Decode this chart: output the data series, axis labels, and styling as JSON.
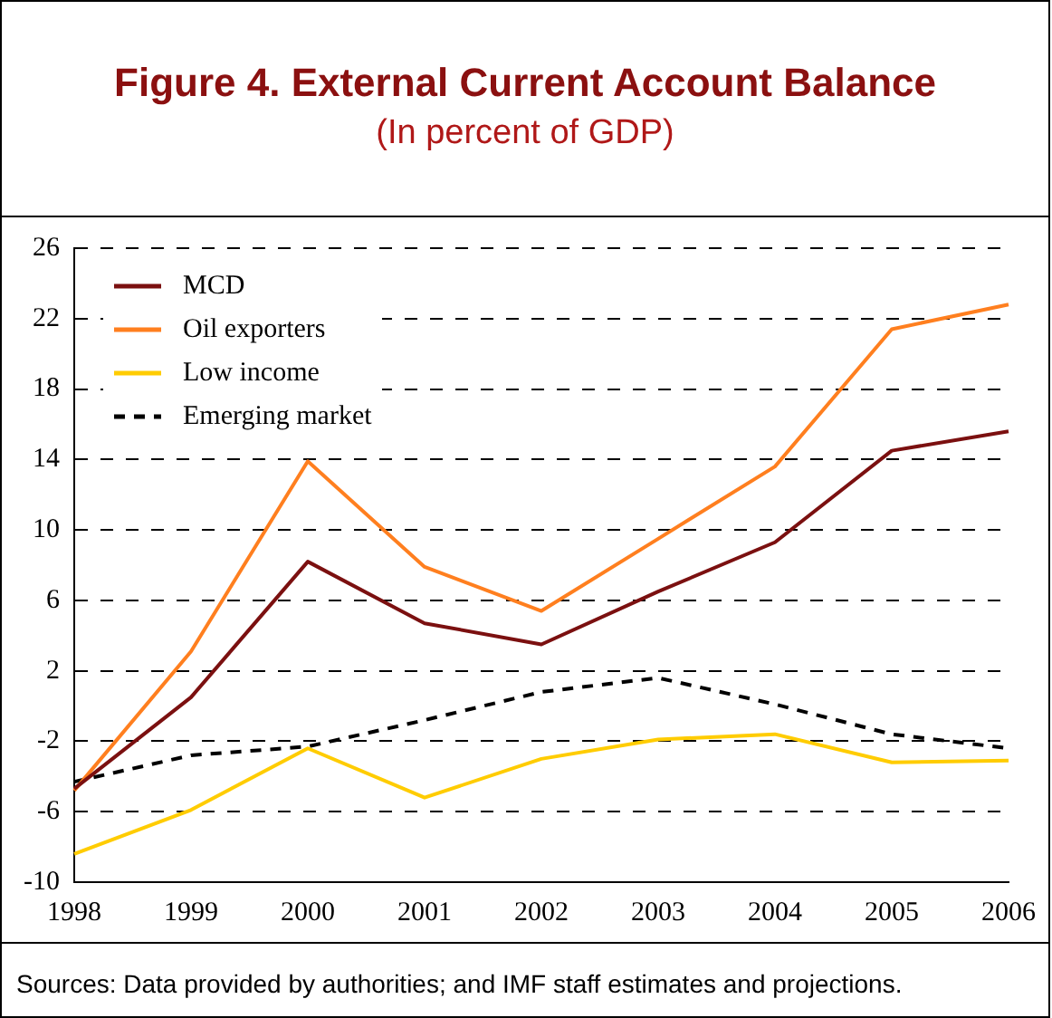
{
  "chart_data": {
    "type": "line",
    "title": "Figure 4. External Current Account Balance",
    "subtitle": "(In percent of GDP)",
    "categories": [
      "1998",
      "1999",
      "2000",
      "2001",
      "2002",
      "2003",
      "2004",
      "2005",
      "2006"
    ],
    "series": [
      {
        "name": "MCD",
        "color": "#7b1010",
        "values": [
          -4.7,
          0.5,
          8.2,
          4.7,
          3.5,
          6.5,
          9.3,
          14.5,
          15.6
        ]
      },
      {
        "name": "Oil exporters",
        "color": "#ff7f1f",
        "values": [
          -4.8,
          3.1,
          13.9,
          7.9,
          5.4,
          9.5,
          13.6,
          21.4,
          22.8
        ]
      },
      {
        "name": "Low income",
        "color": "#ffcc00",
        "values": [
          -8.4,
          -5.9,
          -2.4,
          -5.2,
          -3.0,
          -1.9,
          -1.6,
          -3.2,
          -3.1
        ]
      },
      {
        "name": "Emerging market",
        "color": "#000000",
        "line_style": "dashed",
        "values": [
          -4.3,
          -2.8,
          -2.3,
          -0.8,
          0.8,
          1.6,
          0.1,
          -1.6,
          -2.4
        ]
      }
    ],
    "ylim": [
      -10,
      26
    ],
    "yticks": [
      -10,
      -6,
      -2,
      2,
      6,
      10,
      14,
      18,
      22,
      26
    ],
    "grid": "y",
    "legend": "top left",
    "marker": "none",
    "line_style": "solid",
    "annotations": [
      "Sources: Data provided by authorities; and IMF staff estimates and projections."
    ]
  }
}
